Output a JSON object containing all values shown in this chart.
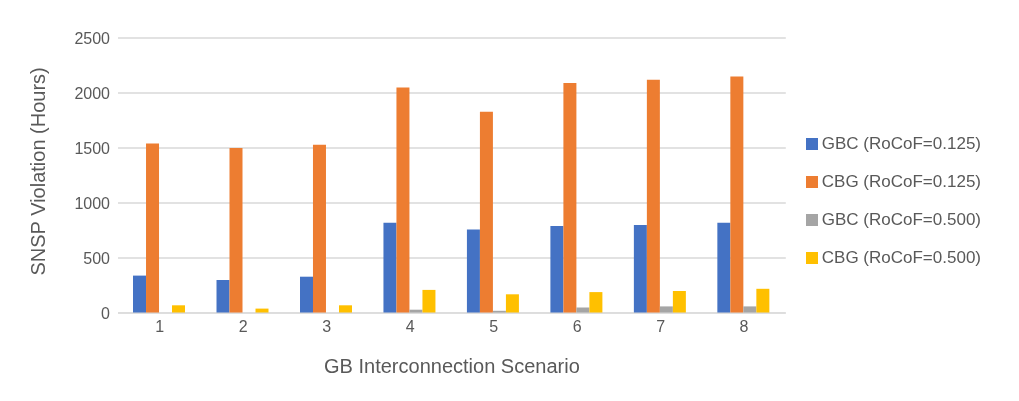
{
  "chart_data": {
    "type": "bar",
    "xlabel": "GB Interconnection Scenario",
    "ylabel": "SNSP Violation (Hours)",
    "categories": [
      "1",
      "2",
      "3",
      "4",
      "5",
      "6",
      "7",
      "8"
    ],
    "series": [
      {
        "name": "GBC (RoCoF=0.125)",
        "color": "#4472c4",
        "values": [
          340,
          300,
          330,
          820,
          760,
          790,
          800,
          820
        ]
      },
      {
        "name": "CBG (RoCoF=0.125)",
        "color": "#ed7d31",
        "values": [
          1540,
          1500,
          1530,
          2050,
          1830,
          2090,
          2120,
          2150
        ]
      },
      {
        "name": "GBC (RoCoF=0.500)",
        "color": "#a5a5a5",
        "values": [
          0,
          0,
          0,
          30,
          20,
          50,
          60,
          60
        ]
      },
      {
        "name": "CBG (RoCoF=0.500)",
        "color": "#ffc000",
        "values": [
          70,
          40,
          70,
          210,
          170,
          190,
          200,
          220
        ]
      }
    ],
    "ylim": [
      0,
      2500
    ],
    "yticks": [
      0,
      500,
      1000,
      1500,
      2000,
      2500
    ],
    "grid": "y",
    "legend": "right"
  }
}
